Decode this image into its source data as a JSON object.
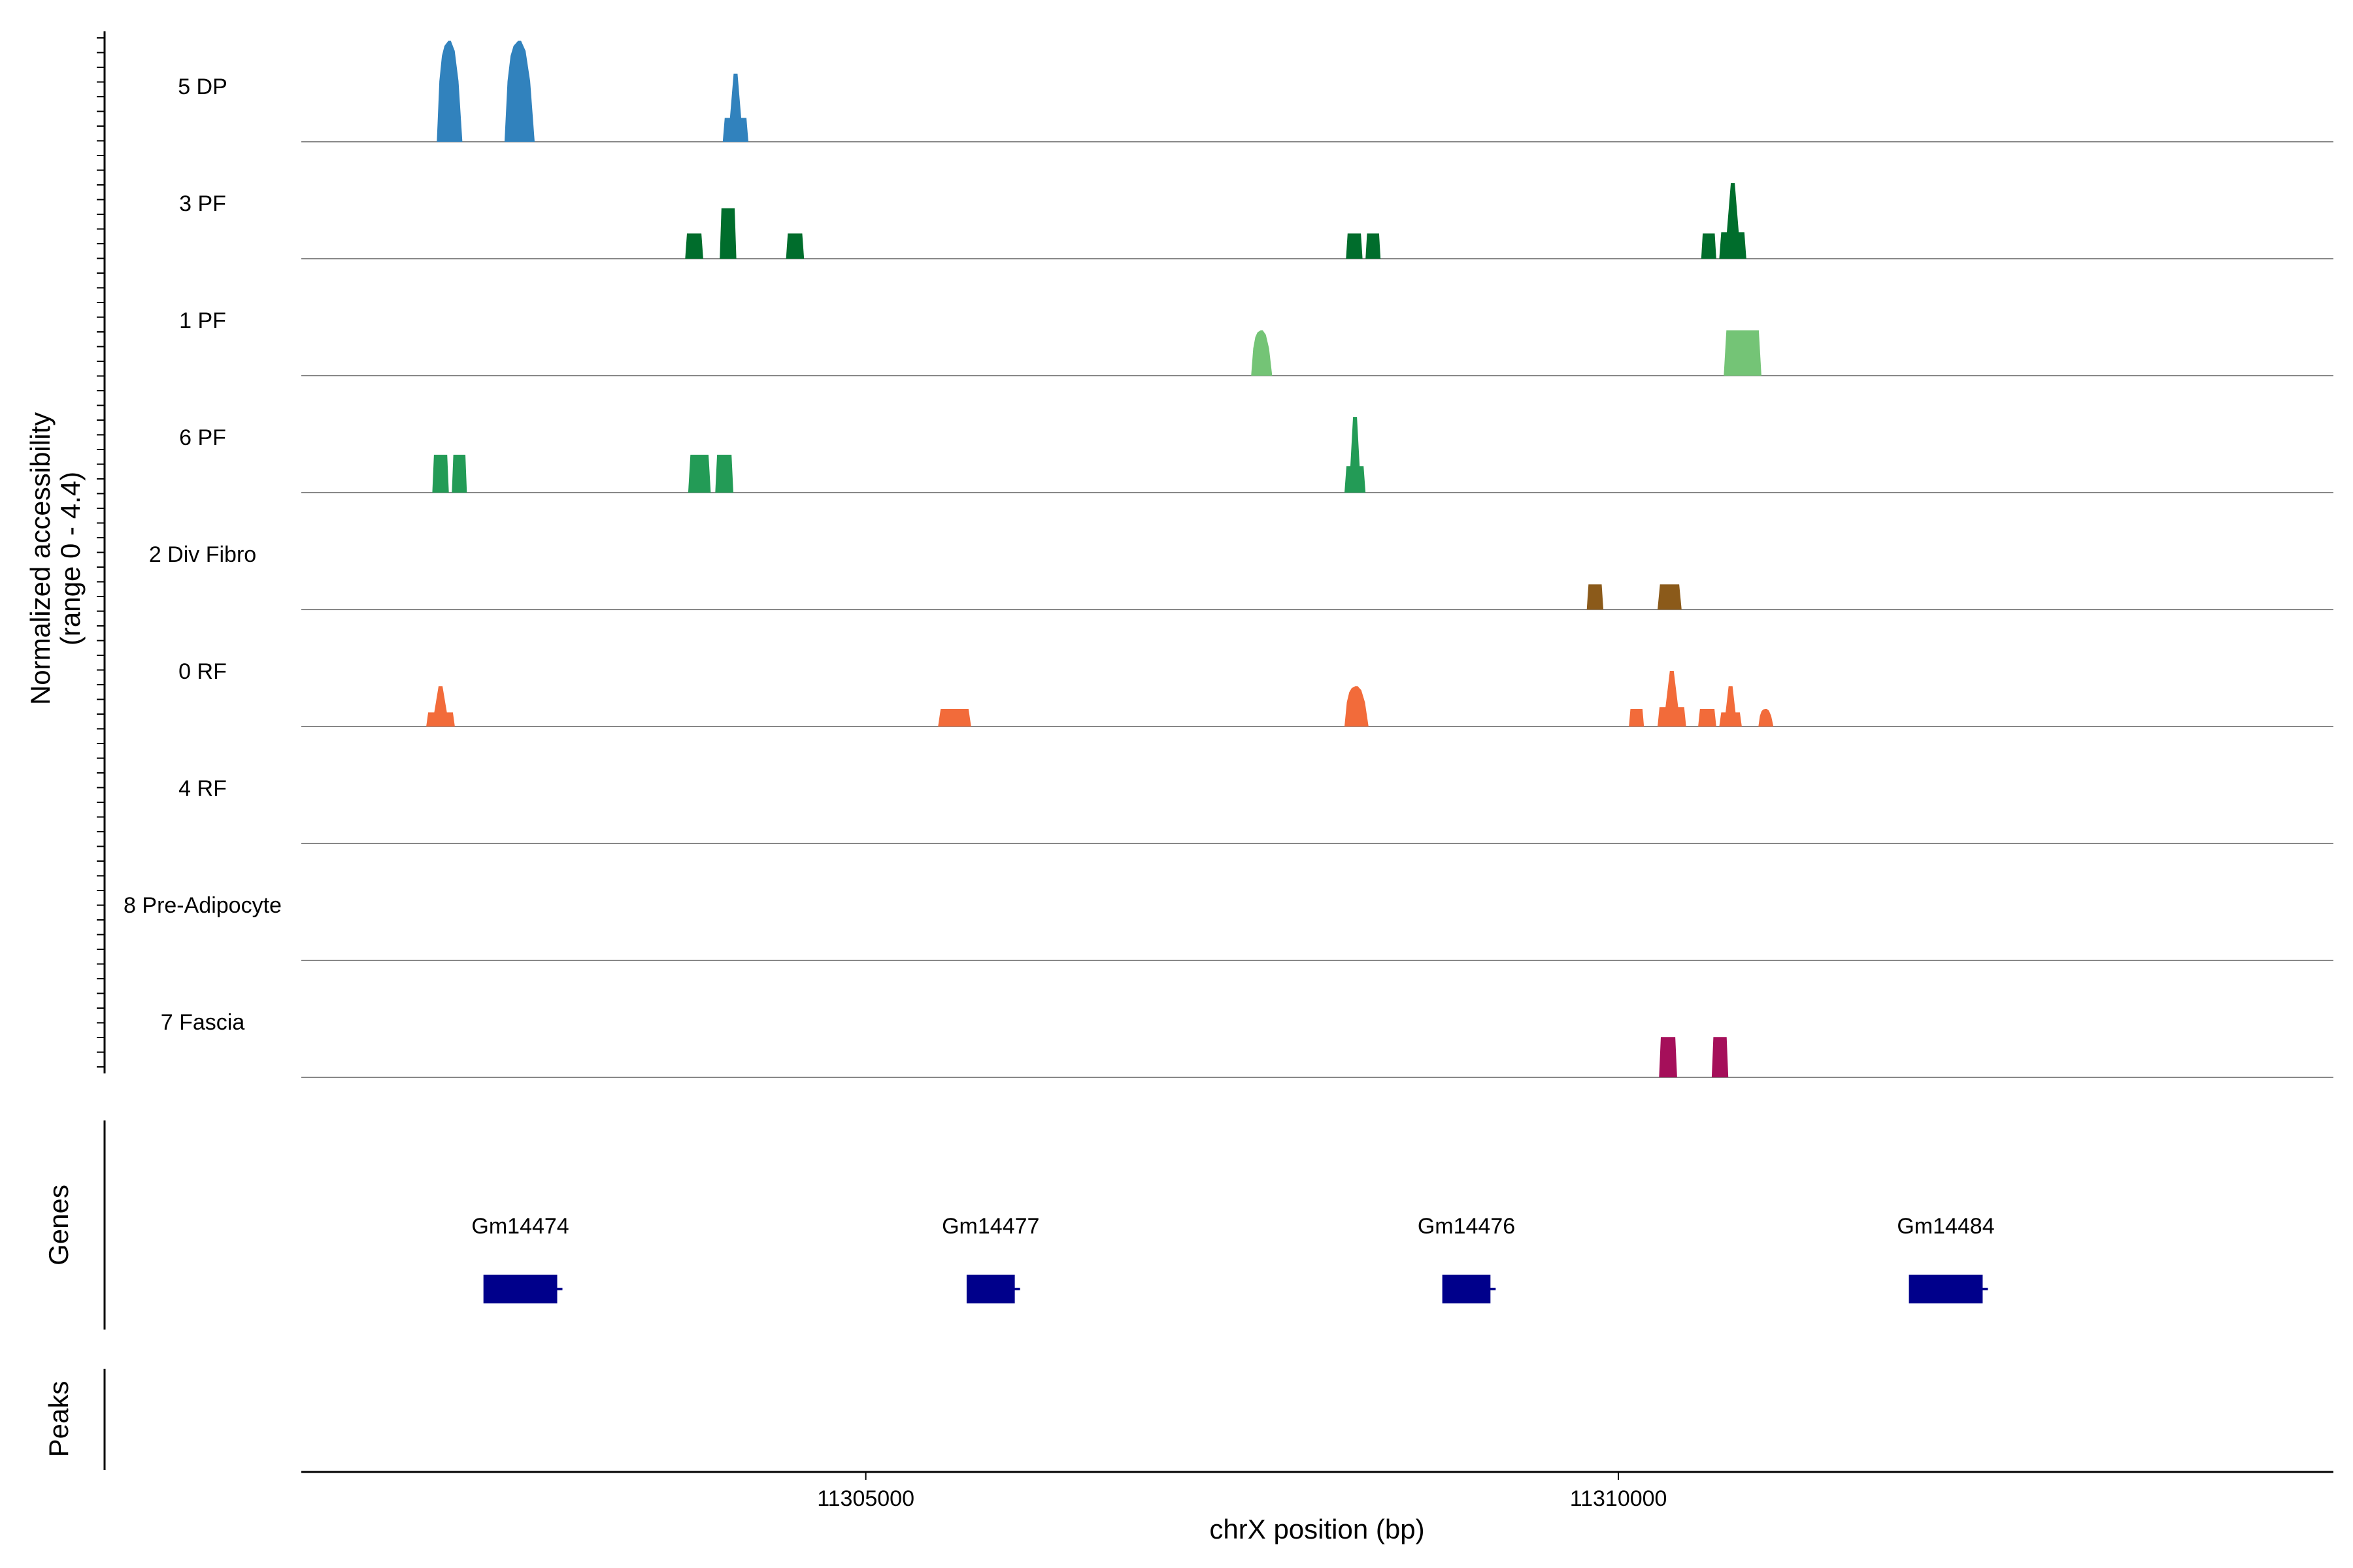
{
  "chart_data": {
    "type": "area",
    "subtype": "genome-coverage-track",
    "title": "",
    "ylabel_line1": "Normalized accessibility",
    "ylabel_line2": "(range 0 - 4.4)",
    "xlabel": "chrX position (bp)",
    "y_range": [
      0,
      4.4
    ],
    "x_range": [
      11301250,
      11314750
    ],
    "x_ticks": [
      11305000,
      11310000
    ],
    "x_tick_labels": [
      "11305000",
      "11310000"
    ],
    "genes_label": "Genes",
    "peaks_label": "Peaks",
    "baseline_color": "#888888",
    "gene_color": "#00008B",
    "tracks": [
      {
        "name": "5 DP",
        "color": "#3182BD",
        "peaks": [
          {
            "start": 11302150,
            "end": 11302320,
            "height": 4.0,
            "shape": "bump"
          },
          {
            "start": 11302600,
            "end": 11302800,
            "height": 4.0,
            "shape": "bump"
          },
          {
            "start": 11304050,
            "end": 11304220,
            "height": 2.7,
            "shape": "spike"
          }
        ]
      },
      {
        "name": "3 PF",
        "color": "#006D2C",
        "peaks": [
          {
            "start": 11303800,
            "end": 11303920,
            "height": 1.0,
            "shape": "mesa"
          },
          {
            "start": 11304030,
            "end": 11304140,
            "height": 2.0,
            "shape": "mesa"
          },
          {
            "start": 11304470,
            "end": 11304590,
            "height": 1.0,
            "shape": "mesa"
          },
          {
            "start": 11308190,
            "end": 11308300,
            "height": 1.0,
            "shape": "mesa"
          },
          {
            "start": 11308320,
            "end": 11308420,
            "height": 1.0,
            "shape": "mesa"
          },
          {
            "start": 11310550,
            "end": 11310650,
            "height": 1.0,
            "shape": "mesa"
          },
          {
            "start": 11310670,
            "end": 11310850,
            "height": 3.0,
            "shape": "spike"
          }
        ]
      },
      {
        "name": "1 PF",
        "color": "#74C476",
        "peaks": [
          {
            "start": 11307560,
            "end": 11307700,
            "height": 1.8,
            "shape": "bump"
          },
          {
            "start": 11310700,
            "end": 11310950,
            "height": 1.8,
            "shape": "mesa"
          }
        ]
      },
      {
        "name": "6 PF",
        "color": "#239B56",
        "peaks": [
          {
            "start": 11302120,
            "end": 11302230,
            "height": 1.5,
            "shape": "mesa"
          },
          {
            "start": 11302250,
            "end": 11302350,
            "height": 1.5,
            "shape": "mesa"
          },
          {
            "start": 11303820,
            "end": 11303970,
            "height": 1.5,
            "shape": "mesa"
          },
          {
            "start": 11304000,
            "end": 11304120,
            "height": 1.5,
            "shape": "mesa"
          },
          {
            "start": 11308180,
            "end": 11308320,
            "height": 3.0,
            "shape": "spike"
          }
        ]
      },
      {
        "name": "2 Div Fibro",
        "color": "#8B5A1A",
        "peaks": [
          {
            "start": 11309790,
            "end": 11309900,
            "height": 1.0,
            "shape": "mesa"
          },
          {
            "start": 11310260,
            "end": 11310420,
            "height": 1.0,
            "shape": "mesa"
          }
        ]
      },
      {
        "name": "0 RF",
        "color": "#F26B3A",
        "peaks": [
          {
            "start": 11302080,
            "end": 11302270,
            "height": 1.6,
            "shape": "spike"
          },
          {
            "start": 11305480,
            "end": 11305700,
            "height": 0.7,
            "shape": "mesa"
          },
          {
            "start": 11308180,
            "end": 11308340,
            "height": 1.6,
            "shape": "bump"
          },
          {
            "start": 11310070,
            "end": 11310170,
            "height": 0.7,
            "shape": "mesa"
          },
          {
            "start": 11310260,
            "end": 11310450,
            "height": 2.2,
            "shape": "spike"
          },
          {
            "start": 11310530,
            "end": 11310650,
            "height": 0.7,
            "shape": "mesa"
          },
          {
            "start": 11310670,
            "end": 11310820,
            "height": 1.6,
            "shape": "spike"
          },
          {
            "start": 11310930,
            "end": 11311030,
            "height": 0.7,
            "shape": "bump"
          }
        ]
      },
      {
        "name": "4 RF",
        "color": "#F26B3A",
        "peaks": []
      },
      {
        "name": "8 Pre-Adipocyte",
        "color": "#888888",
        "peaks": []
      },
      {
        "name": "7 Fascia",
        "color": "#A50F5A",
        "peaks": [
          {
            "start": 11310270,
            "end": 11310390,
            "height": 1.6,
            "shape": "mesa"
          },
          {
            "start": 11310620,
            "end": 11310730,
            "height": 1.6,
            "shape": "mesa"
          }
        ]
      }
    ],
    "genes": [
      {
        "name": "Gm14474",
        "start": 11302460,
        "end": 11302950
      },
      {
        "name": "Gm14477",
        "start": 11305670,
        "end": 11305990
      },
      {
        "name": "Gm14476",
        "start": 11308830,
        "end": 11309150
      },
      {
        "name": "Gm14484",
        "start": 11311930,
        "end": 11312420
      }
    ]
  }
}
